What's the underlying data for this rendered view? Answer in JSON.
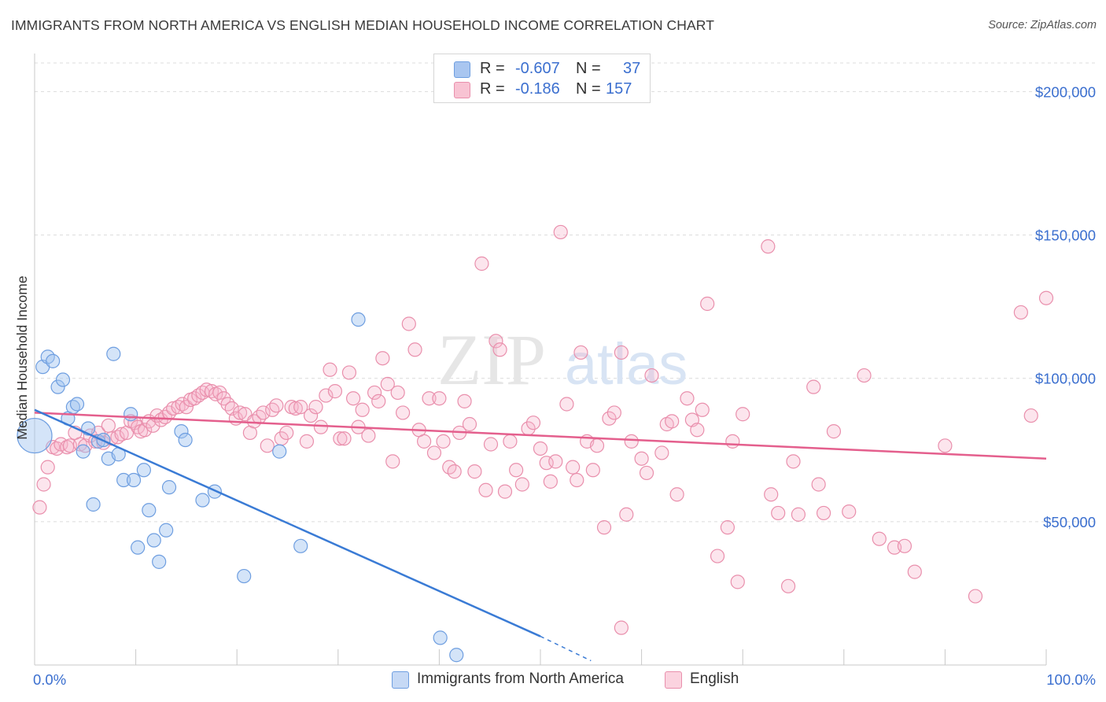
{
  "title": "IMMIGRANTS FROM NORTH AMERICA VS ENGLISH MEDIAN HOUSEHOLD INCOME CORRELATION CHART",
  "source": "Source: ZipAtlas.com",
  "watermark": {
    "zip": "ZIP",
    "atlas": "atlas"
  },
  "legend": {
    "rows": [
      {
        "r_label": "R =",
        "r_value": "-0.607",
        "n_label": "N =",
        "n_value": "37",
        "color": "#a9c6f0",
        "border": "#6e9ee0"
      },
      {
        "r_label": "R =",
        "r_value": "-0.186",
        "n_label": "N =",
        "n_value": "157",
        "color": "#f8c3d3",
        "border": "#e98fac"
      }
    ]
  },
  "bottom_legend": [
    {
      "label": "Immigrants from North America",
      "color": "#c6d9f5",
      "border": "#6e9ee0"
    },
    {
      "label": "English",
      "color": "#fbd3df",
      "border": "#e98fac"
    }
  ],
  "colors": {
    "blue": "#3a7bd5",
    "blue_fill": "rgba(160,195,240,0.45)",
    "pink": "#e45f8d",
    "pink_fill": "rgba(246,180,202,0.35)",
    "tick_text": "#3b6fcf",
    "grid": "#dcdcdc"
  },
  "chart_data": {
    "type": "scatter",
    "title": "IMMIGRANTS FROM NORTH AMERICA VS ENGLISH MEDIAN HOUSEHOLD INCOME CORRELATION CHART",
    "xlabel": "",
    "ylabel": "Median Household Income",
    "xlim": [
      0,
      100
    ],
    "ylim": [
      0,
      210000
    ],
    "x_tick_labels": [
      "0.0%",
      "100.0%"
    ],
    "y_ticks": [
      50000,
      100000,
      150000,
      200000
    ],
    "y_tick_labels": [
      "$50,000",
      "$100,000",
      "$150,000",
      "$200,000"
    ],
    "grid": true,
    "legend_position": "top-center",
    "series": [
      {
        "name": "Immigrants from North America",
        "r": -0.607,
        "n": 37,
        "trend": {
          "x": [
            0,
            50
          ],
          "y": [
            89000,
            10000
          ],
          "dashed_to": [
            55,
            1500
          ]
        },
        "points": [
          [
            0,
            80000
          ],
          [
            0.8,
            104000
          ],
          [
            1.3,
            107500
          ],
          [
            1.8,
            106000
          ],
          [
            2.3,
            97000
          ],
          [
            2.8,
            99500
          ],
          [
            3.3,
            86000
          ],
          [
            3.8,
            90000
          ],
          [
            4.2,
            91000
          ],
          [
            4.8,
            74500
          ],
          [
            5.3,
            82500
          ],
          [
            5.8,
            56000
          ],
          [
            6.3,
            78000
          ],
          [
            6.8,
            78500
          ],
          [
            7.3,
            72000
          ],
          [
            7.8,
            108500
          ],
          [
            8.3,
            73500
          ],
          [
            8.8,
            64500
          ],
          [
            9.5,
            87500
          ],
          [
            9.8,
            64500
          ],
          [
            10.2,
            41000
          ],
          [
            10.8,
            68000
          ],
          [
            11.3,
            54000
          ],
          [
            11.8,
            43500
          ],
          [
            12.3,
            36000
          ],
          [
            13.0,
            47000
          ],
          [
            13.3,
            62000
          ],
          [
            14.5,
            81500
          ],
          [
            14.9,
            78500
          ],
          [
            16.6,
            57500
          ],
          [
            17.8,
            60500
          ],
          [
            20.7,
            31000
          ],
          [
            24.2,
            74500
          ],
          [
            26.3,
            41500
          ],
          [
            32.0,
            120500
          ],
          [
            40.1,
            9500
          ],
          [
            41.7,
            3500
          ]
        ]
      },
      {
        "name": "English",
        "r": -0.186,
        "n": 157,
        "trend": {
          "x": [
            0,
            100
          ],
          "y": [
            88000,
            72000
          ]
        },
        "points": [
          [
            0.5,
            55000
          ],
          [
            0.9,
            63000
          ],
          [
            1.3,
            69000
          ],
          [
            1.8,
            76000
          ],
          [
            2.2,
            75500
          ],
          [
            2.6,
            77000
          ],
          [
            3.2,
            76000
          ],
          [
            3.5,
            76500
          ],
          [
            4.0,
            81000
          ],
          [
            4.5,
            77000
          ],
          [
            5.0,
            76500
          ],
          [
            5.5,
            80000
          ],
          [
            6.0,
            78000
          ],
          [
            6.3,
            81000
          ],
          [
            6.8,
            77500
          ],
          [
            7.3,
            83500
          ],
          [
            7.6,
            79000
          ],
          [
            8.2,
            79500
          ],
          [
            8.6,
            80500
          ],
          [
            9.1,
            81000
          ],
          [
            9.5,
            85000
          ],
          [
            9.9,
            84500
          ],
          [
            10.2,
            83000
          ],
          [
            10.5,
            81500
          ],
          [
            10.9,
            82000
          ],
          [
            11.3,
            85000
          ],
          [
            11.7,
            83500
          ],
          [
            12.1,
            87000
          ],
          [
            12.5,
            85500
          ],
          [
            12.9,
            86500
          ],
          [
            13.3,
            88000
          ],
          [
            13.7,
            89500
          ],
          [
            14.2,
            90000
          ],
          [
            14.6,
            91000
          ],
          [
            15.0,
            90000
          ],
          [
            15.4,
            92500
          ],
          [
            15.8,
            93000
          ],
          [
            16.2,
            94000
          ],
          [
            16.6,
            95000
          ],
          [
            17.0,
            96000
          ],
          [
            17.5,
            95500
          ],
          [
            17.9,
            94500
          ],
          [
            18.3,
            95000
          ],
          [
            18.7,
            93000
          ],
          [
            19.1,
            91000
          ],
          [
            19.5,
            89500
          ],
          [
            19.9,
            86000
          ],
          [
            20.3,
            88000
          ],
          [
            20.8,
            87500
          ],
          [
            21.3,
            81000
          ],
          [
            21.7,
            85000
          ],
          [
            22.2,
            86500
          ],
          [
            22.6,
            88000
          ],
          [
            23.0,
            76500
          ],
          [
            23.5,
            89000
          ],
          [
            23.9,
            90500
          ],
          [
            24.4,
            79000
          ],
          [
            24.9,
            81000
          ],
          [
            25.4,
            90000
          ],
          [
            25.8,
            89500
          ],
          [
            26.3,
            90000
          ],
          [
            26.9,
            78000
          ],
          [
            27.3,
            87000
          ],
          [
            27.8,
            90000
          ],
          [
            28.3,
            83000
          ],
          [
            28.8,
            94000
          ],
          [
            29.2,
            103000
          ],
          [
            29.7,
            95500
          ],
          [
            30.2,
            79000
          ],
          [
            30.6,
            79000
          ],
          [
            31.1,
            102000
          ],
          [
            31.5,
            93000
          ],
          [
            32.0,
            83000
          ],
          [
            32.4,
            89000
          ],
          [
            33.0,
            80000
          ],
          [
            33.6,
            95000
          ],
          [
            34.0,
            92000
          ],
          [
            34.4,
            107000
          ],
          [
            34.9,
            98000
          ],
          [
            35.4,
            71000
          ],
          [
            35.9,
            95000
          ],
          [
            36.4,
            88000
          ],
          [
            37.0,
            119000
          ],
          [
            37.6,
            110000
          ],
          [
            38.0,
            82000
          ],
          [
            38.5,
            78000
          ],
          [
            39.0,
            93000
          ],
          [
            39.5,
            74000
          ],
          [
            40.0,
            93000
          ],
          [
            40.4,
            78000
          ],
          [
            41.0,
            69000
          ],
          [
            41.5,
            67500
          ],
          [
            42.0,
            81000
          ],
          [
            42.5,
            92000
          ],
          [
            43.0,
            84000
          ],
          [
            43.5,
            67500
          ],
          [
            44.2,
            140000
          ],
          [
            44.6,
            61000
          ],
          [
            45.1,
            77000
          ],
          [
            45.6,
            113000
          ],
          [
            46.0,
            110000
          ],
          [
            46.5,
            60500
          ],
          [
            47.0,
            78000
          ],
          [
            47.6,
            68000
          ],
          [
            48.2,
            63000
          ],
          [
            48.8,
            82500
          ],
          [
            49.3,
            84500
          ],
          [
            50.0,
            75500
          ],
          [
            50.6,
            70500
          ],
          [
            51.0,
            64000
          ],
          [
            51.5,
            71000
          ],
          [
            52.0,
            151000
          ],
          [
            52.6,
            91000
          ],
          [
            53.2,
            69000
          ],
          [
            53.6,
            64500
          ],
          [
            54.0,
            109000
          ],
          [
            54.6,
            78000
          ],
          [
            55.2,
            68000
          ],
          [
            55.6,
            76500
          ],
          [
            56.3,
            48000
          ],
          [
            56.8,
            86000
          ],
          [
            57.3,
            88000
          ],
          [
            58.0,
            109000
          ],
          [
            58.5,
            52500
          ],
          [
            59.0,
            78000
          ],
          [
            60.0,
            72000
          ],
          [
            60.5,
            67000
          ],
          [
            61.0,
            101000
          ],
          [
            62.0,
            74000
          ],
          [
            62.5,
            84000
          ],
          [
            63.0,
            85000
          ],
          [
            63.5,
            59500
          ],
          [
            64.5,
            93000
          ],
          [
            65.0,
            85500
          ],
          [
            65.5,
            82000
          ],
          [
            66.0,
            89000
          ],
          [
            66.5,
            126000
          ],
          [
            67.5,
            38000
          ],
          [
            68.5,
            48000
          ],
          [
            69.0,
            78000
          ],
          [
            69.5,
            29000
          ],
          [
            70.0,
            87500
          ],
          [
            72.5,
            146000
          ],
          [
            72.8,
            59500
          ],
          [
            73.5,
            53000
          ],
          [
            74.5,
            27500
          ],
          [
            75.0,
            71000
          ],
          [
            75.5,
            52500
          ],
          [
            77.0,
            97000
          ],
          [
            77.5,
            63000
          ],
          [
            78.0,
            53000
          ],
          [
            79.0,
            81500
          ],
          [
            80.5,
            53500
          ],
          [
            82.0,
            101000
          ],
          [
            83.5,
            44000
          ],
          [
            85.0,
            41000
          ],
          [
            86.0,
            41500
          ],
          [
            87.0,
            32500
          ],
          [
            90.0,
            76500
          ],
          [
            98.5,
            87000
          ],
          [
            93.0,
            24000
          ],
          [
            97.5,
            123000
          ],
          [
            100.0,
            128000
          ],
          [
            58.0,
            13000
          ]
        ]
      }
    ]
  }
}
